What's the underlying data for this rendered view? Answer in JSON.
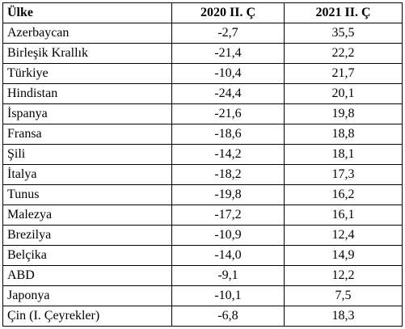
{
  "table": {
    "header": [
      "Ülke",
      "2020 II. Ç",
      "2021 II. Ç"
    ],
    "rows": [
      [
        "Azerbaycan",
        "-2,7",
        "35,5"
      ],
      [
        "Birleşik Krallık",
        "-21,4",
        "22,2"
      ],
      [
        "Türkiye",
        "-10,4",
        "21,7"
      ],
      [
        "Hindistan",
        "-24,4",
        "20,1"
      ],
      [
        "İspanya",
        "-21,6",
        "19,8"
      ],
      [
        "Fransa",
        "-18,6",
        "18,8"
      ],
      [
        "Şili",
        "-14,2",
        "18,1"
      ],
      [
        "İtalya",
        "-18,2",
        "17,3"
      ],
      [
        "Tunus",
        "-19,8",
        "16,2"
      ],
      [
        "Malezya",
        "-17,2",
        "16,1"
      ],
      [
        "Brezilya",
        "-10,9",
        "12,4"
      ],
      [
        "Belçika",
        "-14,0",
        "14,9"
      ],
      [
        "ABD",
        "-9,1",
        "12,2"
      ],
      [
        "Japonya",
        "-10,1",
        "7,5"
      ],
      [
        "Çin (I. Çeyrekler)",
        "-6,8",
        "18,3"
      ]
    ]
  }
}
